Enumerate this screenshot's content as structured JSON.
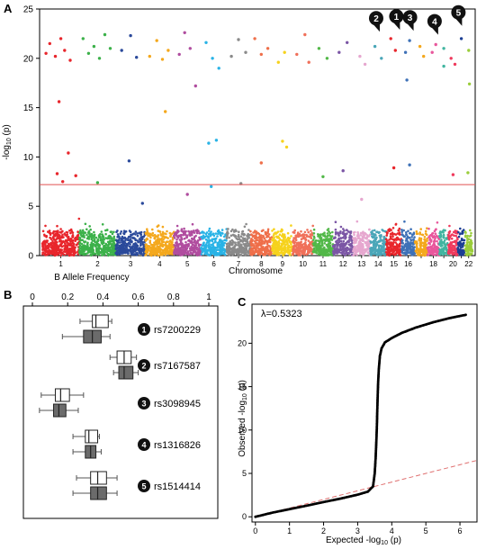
{
  "panels": {
    "a": "A",
    "b": "B",
    "c": "C"
  },
  "chart_data": [
    {
      "panel": "A",
      "type": "scatter",
      "subtype": "manhattan",
      "xlabel": "Chromosome",
      "ylabel": "-log10 (p)",
      "ylim": [
        0,
        25
      ],
      "yticks": [
        0,
        5,
        10,
        15,
        20,
        25
      ],
      "chromosomes": [
        {
          "chr": "1",
          "label": "1",
          "length": 248,
          "color": "#e8262c"
        },
        {
          "chr": "2",
          "label": "2",
          "length": 242,
          "color": "#3cb14a"
        },
        {
          "chr": "3",
          "label": "3",
          "length": 198,
          "color": "#2b4a9b"
        },
        {
          "chr": "4",
          "label": "4",
          "length": 190,
          "color": "#f4a81d"
        },
        {
          "chr": "5",
          "label": "5",
          "length": 181,
          "color": "#b04d9f"
        },
        {
          "chr": "6",
          "label": "6",
          "length": 171,
          "color": "#29b3e6"
        },
        {
          "chr": "7",
          "label": "7",
          "length": 159,
          "color": "#8a8a8a"
        },
        {
          "chr": "8",
          "label": "8",
          "length": 145,
          "color": "#ef6f4a"
        },
        {
          "chr": "9",
          "label": "9",
          "length": 138,
          "color": "#f6d21d"
        },
        {
          "chr": "10",
          "label": "10",
          "length": 134,
          "color": "#f0705a"
        },
        {
          "chr": "11",
          "label": "11",
          "length": 135,
          "color": "#52b848"
        },
        {
          "chr": "12",
          "label": "12",
          "length": 133,
          "color": "#7b56a5"
        },
        {
          "chr": "13",
          "label": "13",
          "length": 114,
          "color": "#e6a7cf"
        },
        {
          "chr": "14",
          "label": "14",
          "length": 107,
          "color": "#4aa6b8"
        },
        {
          "chr": "15",
          "label": "15",
          "length": 102,
          "color": "#e8262c"
        },
        {
          "chr": "16",
          "label": "16",
          "length": 90,
          "color": "#3e71b7"
        },
        {
          "chr": "17",
          "label": "",
          "length": 83,
          "color": "#f4a81d"
        },
        {
          "chr": "18",
          "label": "18",
          "length": 80,
          "color": "#e8579c"
        },
        {
          "chr": "19",
          "label": "",
          "length": 59,
          "color": "#41b5a0"
        },
        {
          "chr": "20",
          "label": "20",
          "length": 64,
          "color": "#ef3a5d"
        },
        {
          "chr": "21",
          "label": "",
          "length": 47,
          "color": "#1c3f94"
        },
        {
          "chr": "22",
          "label": "22",
          "length": 51,
          "color": "#9acd3a"
        }
      ],
      "threshold": 7.2,
      "callouts": [
        {
          "label": "2",
          "chr": "14",
          "pos": 0.6,
          "y": 22.6
        },
        {
          "label": "1",
          "chr": "15",
          "pos": 0.9,
          "y": 22.8
        },
        {
          "label": "3",
          "chr": "16",
          "pos": 0.9,
          "y": 22.7
        },
        {
          "label": "4",
          "chr": "18",
          "pos": 0.9,
          "y": 22.3
        },
        {
          "label": "5",
          "chr": "21",
          "pos": 0.6,
          "y": 23.2
        }
      ],
      "highlight_points": [
        {
          "chr": "1",
          "pos": 0.1,
          "y": 20.5
        },
        {
          "chr": "1",
          "pos": 0.2,
          "y": 21.5
        },
        {
          "chr": "1",
          "pos": 0.35,
          "y": 20.2
        },
        {
          "chr": "1",
          "pos": 0.5,
          "y": 22.0
        },
        {
          "chr": "1",
          "pos": 0.6,
          "y": 20.8
        },
        {
          "chr": "1",
          "pos": 0.75,
          "y": 19.8
        },
        {
          "chr": "1",
          "pos": 0.45,
          "y": 15.6
        },
        {
          "chr": "1",
          "pos": 0.7,
          "y": 10.4
        },
        {
          "chr": "1",
          "pos": 0.4,
          "y": 8.3
        },
        {
          "chr": "1",
          "pos": 0.55,
          "y": 7.5
        },
        {
          "chr": "1",
          "pos": 0.9,
          "y": 8.1
        },
        {
          "chr": "2",
          "pos": 0.1,
          "y": 22.0
        },
        {
          "chr": "2",
          "pos": 0.25,
          "y": 20.5
        },
        {
          "chr": "2",
          "pos": 0.4,
          "y": 21.2
        },
        {
          "chr": "2",
          "pos": 0.55,
          "y": 20.0
        },
        {
          "chr": "2",
          "pos": 0.7,
          "y": 22.4
        },
        {
          "chr": "2",
          "pos": 0.85,
          "y": 21.0
        },
        {
          "chr": "2",
          "pos": 0.5,
          "y": 7.4
        },
        {
          "chr": "3",
          "pos": 0.2,
          "y": 20.8
        },
        {
          "chr": "3",
          "pos": 0.5,
          "y": 22.3
        },
        {
          "chr": "3",
          "pos": 0.7,
          "y": 20.1
        },
        {
          "chr": "3",
          "pos": 0.45,
          "y": 9.6
        },
        {
          "chr": "3",
          "pos": 0.9,
          "y": 5.3
        },
        {
          "chr": "4",
          "pos": 0.15,
          "y": 20.2
        },
        {
          "chr": "4",
          "pos": 0.4,
          "y": 21.8
        },
        {
          "chr": "4",
          "pos": 0.6,
          "y": 19.9
        },
        {
          "chr": "4",
          "pos": 0.8,
          "y": 20.8
        },
        {
          "chr": "4",
          "pos": 0.7,
          "y": 14.6
        },
        {
          "chr": "5",
          "pos": 0.2,
          "y": 20.4
        },
        {
          "chr": "5",
          "pos": 0.4,
          "y": 22.6
        },
        {
          "chr": "5",
          "pos": 0.6,
          "y": 21.0
        },
        {
          "chr": "5",
          "pos": 0.8,
          "y": 17.2
        },
        {
          "chr": "5",
          "pos": 0.5,
          "y": 6.2
        },
        {
          "chr": "6",
          "pos": 0.2,
          "y": 21.6
        },
        {
          "chr": "6",
          "pos": 0.45,
          "y": 20.0
        },
        {
          "chr": "6",
          "pos": 0.7,
          "y": 19.0
        },
        {
          "chr": "6",
          "pos": 0.3,
          "y": 11.4
        },
        {
          "chr": "6",
          "pos": 0.6,
          "y": 11.7
        },
        {
          "chr": "6",
          "pos": 0.4,
          "y": 7.0
        },
        {
          "chr": "7",
          "pos": 0.2,
          "y": 20.2
        },
        {
          "chr": "7",
          "pos": 0.5,
          "y": 21.9
        },
        {
          "chr": "7",
          "pos": 0.8,
          "y": 20.6
        },
        {
          "chr": "7",
          "pos": 0.6,
          "y": 7.3
        },
        {
          "chr": "8",
          "pos": 0.2,
          "y": 22.0
        },
        {
          "chr": "8",
          "pos": 0.5,
          "y": 20.4
        },
        {
          "chr": "8",
          "pos": 0.8,
          "y": 21.0
        },
        {
          "chr": "8",
          "pos": 0.5,
          "y": 9.4
        },
        {
          "chr": "9",
          "pos": 0.3,
          "y": 19.6
        },
        {
          "chr": "9",
          "pos": 0.6,
          "y": 20.6
        },
        {
          "chr": "9",
          "pos": 0.5,
          "y": 11.6
        },
        {
          "chr": "9",
          "pos": 0.7,
          "y": 11.0
        },
        {
          "chr": "10",
          "pos": 0.2,
          "y": 20.4
        },
        {
          "chr": "10",
          "pos": 0.6,
          "y": 22.4
        },
        {
          "chr": "10",
          "pos": 0.8,
          "y": 19.6
        },
        {
          "chr": "11",
          "pos": 0.3,
          "y": 21.0
        },
        {
          "chr": "11",
          "pos": 0.7,
          "y": 20.0
        },
        {
          "chr": "11",
          "pos": 0.5,
          "y": 8.0
        },
        {
          "chr": "12",
          "pos": 0.3,
          "y": 20.6
        },
        {
          "chr": "12",
          "pos": 0.7,
          "y": 21.6
        },
        {
          "chr": "12",
          "pos": 0.5,
          "y": 8.6
        },
        {
          "chr": "13",
          "pos": 0.4,
          "y": 20.2
        },
        {
          "chr": "13",
          "pos": 0.7,
          "y": 19.4
        },
        {
          "chr": "13",
          "pos": 0.5,
          "y": 5.7
        },
        {
          "chr": "14",
          "pos": 0.3,
          "y": 21.2
        },
        {
          "chr": "14",
          "pos": 0.7,
          "y": 20.0
        },
        {
          "chr": "15",
          "pos": 0.3,
          "y": 22.0
        },
        {
          "chr": "15",
          "pos": 0.6,
          "y": 20.8
        },
        {
          "chr": "15",
          "pos": 0.5,
          "y": 8.9
        },
        {
          "chr": "16",
          "pos": 0.3,
          "y": 20.6
        },
        {
          "chr": "16",
          "pos": 0.6,
          "y": 21.8
        },
        {
          "chr": "16",
          "pos": 0.4,
          "y": 17.8
        },
        {
          "chr": "16",
          "pos": 0.6,
          "y": 9.2
        },
        {
          "chr": "17",
          "pos": 0.4,
          "y": 21.2
        },
        {
          "chr": "17",
          "pos": 0.7,
          "y": 20.2
        },
        {
          "chr": "18",
          "pos": 0.4,
          "y": 20.6
        },
        {
          "chr": "18",
          "pos": 0.7,
          "y": 21.4
        },
        {
          "chr": "19",
          "pos": 0.5,
          "y": 21.0
        },
        {
          "chr": "19",
          "pos": 0.5,
          "y": 19.2
        },
        {
          "chr": "20",
          "pos": 0.3,
          "y": 20.0
        },
        {
          "chr": "20",
          "pos": 0.7,
          "y": 19.4
        },
        {
          "chr": "20",
          "pos": 0.5,
          "y": 8.2
        },
        {
          "chr": "21",
          "pos": 0.5,
          "y": 22.0
        },
        {
          "chr": "22",
          "pos": 0.5,
          "y": 20.8
        },
        {
          "chr": "22",
          "pos": 0.6,
          "y": 17.4
        },
        {
          "chr": "22",
          "pos": 0.4,
          "y": 8.4
        }
      ]
    },
    {
      "panel": "B",
      "type": "boxplot",
      "xlabel": "B Allele Frequency",
      "xlim": [
        0,
        1
      ],
      "xticks": [
        0,
        0.2,
        0.4,
        0.6,
        0.8,
        1
      ],
      "xticklabels": [
        "0",
        "0.2",
        "0.4",
        "0.6",
        "0.8",
        "1"
      ],
      "groups": [
        {
          "num": "1",
          "snp": "rs7200229",
          "white": {
            "min": 0.27,
            "q1": 0.34,
            "median": 0.36,
            "q3": 0.43,
            "max": 0.45
          },
          "gray": {
            "min": 0.17,
            "q1": 0.29,
            "median": 0.34,
            "q3": 0.39,
            "max": 0.44
          }
        },
        {
          "num": "2",
          "snp": "rs7167587",
          "white": {
            "min": 0.44,
            "q1": 0.48,
            "median": 0.52,
            "q3": 0.56,
            "max": 0.59
          },
          "gray": {
            "min": 0.46,
            "q1": 0.49,
            "median": 0.52,
            "q3": 0.57,
            "max": 0.6
          }
        },
        {
          "num": "3",
          "snp": "rs3098945",
          "white": {
            "min": 0.05,
            "q1": 0.13,
            "median": 0.16,
            "q3": 0.21,
            "max": 0.29
          },
          "gray": {
            "min": 0.04,
            "q1": 0.12,
            "median": 0.15,
            "q3": 0.19,
            "max": 0.26
          }
        },
        {
          "num": "4",
          "snp": "rs1316826",
          "white": {
            "min": 0.23,
            "q1": 0.3,
            "median": 0.32,
            "q3": 0.37,
            "max": 0.38
          },
          "gray": {
            "min": 0.23,
            "q1": 0.3,
            "median": 0.33,
            "q3": 0.36,
            "max": 0.39
          }
        },
        {
          "num": "5",
          "snp": "rs1514414",
          "white": {
            "min": 0.25,
            "q1": 0.33,
            "median": 0.37,
            "q3": 0.42,
            "max": 0.48
          },
          "gray": {
            "min": 0.23,
            "q1": 0.33,
            "median": 0.37,
            "q3": 0.42,
            "max": 0.48
          }
        }
      ]
    },
    {
      "panel": "C",
      "type": "scatter",
      "subtype": "qq",
      "xlabel": "Expected -log10 (p)",
      "ylabel": "Observed -log10 (p)",
      "xlim": [
        -0.1,
        6.5
      ],
      "ylim": [
        -0.6,
        24.5
      ],
      "xticks": [
        0,
        1,
        2,
        3,
        4,
        5,
        6
      ],
      "yticks": [
        0,
        5,
        10,
        15,
        20
      ],
      "lambda": "λ=0.5323",
      "reference_slope": 1.0,
      "curve": [
        [
          0,
          0
        ],
        [
          0.5,
          0.48
        ],
        [
          1,
          0.88
        ],
        [
          1.5,
          1.28
        ],
        [
          2,
          1.7
        ],
        [
          2.5,
          2.1
        ],
        [
          3,
          2.55
        ],
        [
          3.3,
          2.9
        ],
        [
          3.45,
          3.5
        ],
        [
          3.5,
          5.0
        ],
        [
          3.53,
          7.0
        ],
        [
          3.56,
          10.0
        ],
        [
          3.58,
          13.0
        ],
        [
          3.6,
          15.5
        ],
        [
          3.62,
          17.0
        ],
        [
          3.65,
          18.5
        ],
        [
          3.7,
          19.4
        ],
        [
          3.8,
          20.1
        ],
        [
          4.0,
          20.6
        ],
        [
          4.3,
          21.2
        ],
        [
          4.7,
          21.8
        ],
        [
          5.2,
          22.4
        ],
        [
          5.7,
          22.9
        ],
        [
          6.2,
          23.3
        ]
      ]
    }
  ]
}
